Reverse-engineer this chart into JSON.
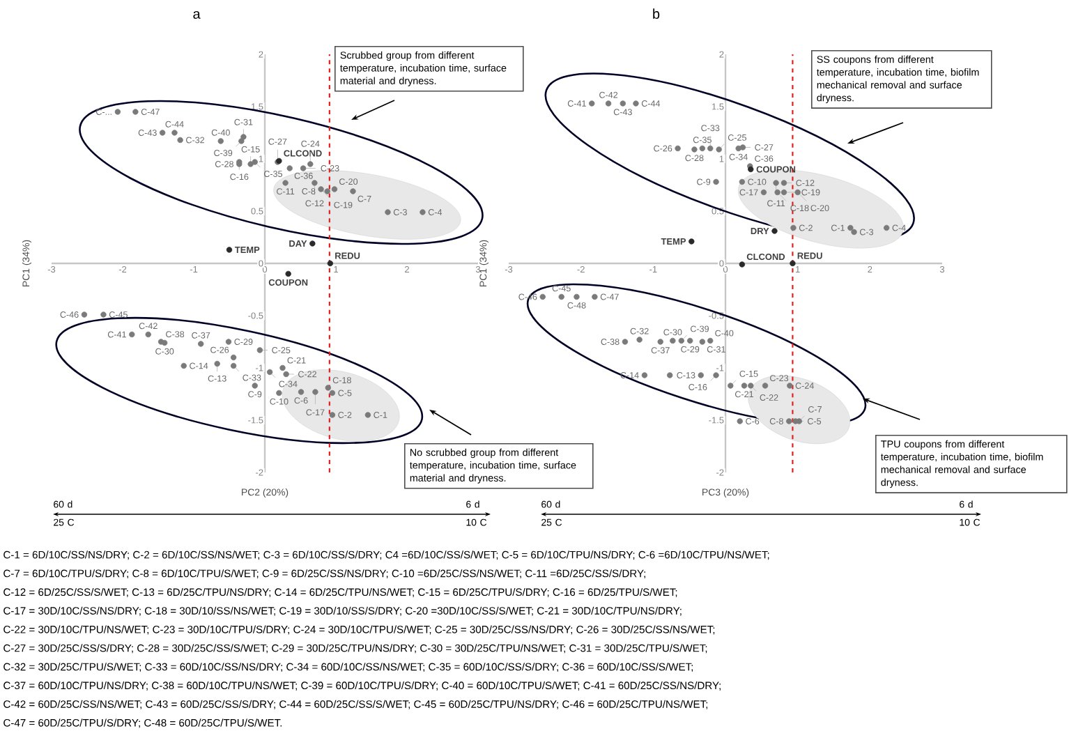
{
  "chart_data": [
    {
      "type": "scatter",
      "title": "a",
      "xlabel": "PC2 (20%)",
      "ylabel": "PC1 (34%)",
      "xlim": [
        -3,
        3
      ],
      "ylim": [
        -2,
        2
      ],
      "xticks": [
        -3,
        -2,
        -1,
        0,
        1,
        2,
        3
      ],
      "yticks": [
        -2,
        -1.5,
        -1,
        -0.5,
        0,
        0.5,
        1,
        1.5,
        2
      ],
      "marker": "circle",
      "series": [
        {
          "color": "#7a7a7a",
          "x": [
            -2.07,
            -1.82,
            -1.44,
            -1.27,
            -1.19,
            -0.62,
            -0.33,
            -0.3,
            -0.36,
            -0.14,
            -0.36,
            -0.2,
            0.18,
            0.35,
            0.54,
            0.64,
            0.29,
            0.7,
            0.79,
            0.98,
            0.88,
            1.24,
            1.73,
            2.22,
            -2.54,
            -2.27,
            -1.87,
            -1.64,
            -1.46,
            -1.41,
            -0.9,
            -0.51,
            -0.07,
            -0.44,
            -1.14,
            -0.67,
            -0.44,
            0.07,
            -0.14,
            0.2,
            0.25,
            0.3,
            0.51,
            0.71,
            0.95,
            0.89,
            0.95,
            1.45
          ],
          "values": [
            1.45,
            1.45,
            1.25,
            1.25,
            1.18,
            1.17,
            1.17,
            1.21,
            0.97,
            0.97,
            0.95,
            0.95,
            0.97,
            0.91,
            0.91,
            0.95,
            0.77,
            0.77,
            0.71,
            0.71,
            0.69,
            0.69,
            0.49,
            0.49,
            -0.49,
            -0.49,
            -0.68,
            -0.68,
            -0.75,
            -0.76,
            -0.77,
            -0.75,
            -0.83,
            -0.9,
            -0.98,
            -0.96,
            -0.98,
            -1.04,
            -1.17,
            -1.24,
            -1.0,
            -1.06,
            -1.23,
            -1.23,
            -1.24,
            -1.19,
            -1.45,
            -1.45
          ],
          "value_labels": [
            "C-...",
            "C-47",
            "C-43",
            "C-44",
            "C-32",
            "C-40",
            "C-39",
            "C-31",
            "C-16",
            "C-35",
            "C-28",
            "C-15",
            "C-27",
            "C-36",
            "C-23",
            "C-24",
            "C-11",
            "C-12",
            "C-19",
            "C-20",
            "C-8",
            "C-7",
            "C-3",
            "C-4",
            "C-46",
            "C-45",
            "C-41",
            "C-42",
            "C-38",
            "C-30",
            "C-37",
            "C-29",
            "C-25",
            "C-26",
            "C-14",
            "C-13",
            "C-33",
            "C-34",
            "C-9",
            "C-10",
            "C-21",
            "C-22",
            "C-6",
            "C-17",
            "C-5",
            "C-18",
            "C-2",
            "C-1"
          ]
        },
        {
          "color": "#2a2a2a",
          "x": [
            -0.5,
            0.67,
            0.92,
            0.2,
            0.33
          ],
          "values": [
            0.13,
            0.19,
            0.0,
            0.98,
            -0.1
          ],
          "value_labels": [
            "TEMP",
            "DAY",
            "REDU",
            "CLCOND",
            "COUPON"
          ]
        }
      ],
      "ref_lines": [
        {
          "axis": "x",
          "value": 0.91,
          "color": "#e02020",
          "line_style": "dashed"
        }
      ],
      "annotations": [
        "Scrubbed group from different temperature, incubation time, surface material and dryness.",
        "No scrubbed group from different temperature, incubation time, surface material and dryness.",
        "60 d 25 C",
        "6 d 10 C"
      ]
    },
    {
      "type": "scatter",
      "title": "b",
      "xlabel": "PC3 (20%)",
      "ylabel": "PC1 (34%)",
      "xlim": [
        -3,
        3
      ],
      "ylim": [
        -2,
        2
      ],
      "xticks": [
        -3,
        -2,
        -1,
        0,
        1,
        2,
        3
      ],
      "yticks": [
        -2,
        -1.5,
        -1,
        -0.5,
        0,
        0.5,
        1,
        1.5,
        2
      ],
      "marker": "circle",
      "series": [
        {
          "color": "#7a7a7a",
          "x": [
            -1.85,
            -1.62,
            -1.42,
            -1.24,
            -0.66,
            -0.43,
            -0.32,
            -0.21,
            -0.09,
            0.18,
            0.24,
            0.34,
            -0.13,
            0.23,
            0.7,
            0.81,
            0.53,
            0.72,
            0.81,
            1.0,
            0.94,
            1.73,
            2.23,
            1.78,
            -2.53,
            -2.27,
            -2.06,
            -1.81,
            -1.39,
            -1.19,
            -0.9,
            -0.73,
            -0.61,
            -0.49,
            -0.32,
            -0.21,
            -1.12,
            -0.77,
            -0.34,
            -0.13,
            0.07,
            0.26,
            0.35,
            0.55,
            0.89,
            0.2,
            0.88,
            0.97,
            1.02
          ],
          "values": [
            1.53,
            1.53,
            1.53,
            1.53,
            1.1,
            1.09,
            1.1,
            1.1,
            1.09,
            1.1,
            1.11,
            0.93,
            0.78,
            0.78,
            0.77,
            0.77,
            0.68,
            0.68,
            0.68,
            0.68,
            0.34,
            0.34,
            0.34,
            0.3,
            -0.32,
            -0.32,
            -0.32,
            -0.32,
            -0.75,
            -0.73,
            -0.75,
            -0.74,
            -0.74,
            -0.74,
            -0.75,
            -0.74,
            -1.07,
            -1.07,
            -1.07,
            -1.07,
            -1.17,
            -1.17,
            -1.17,
            -1.17,
            -1.17,
            -1.51,
            -1.51,
            -1.51,
            -1.51
          ],
          "value_labels": [
            "C-41",
            "C-42",
            "C-43",
            "C-44",
            "C-26",
            "C-28",
            "C-35",
            "C-33",
            "C-25",
            "C-34",
            "C-27",
            "C-36",
            "C-9",
            "C-10",
            "C-11",
            "C-12",
            "C-17",
            "C-18",
            "C-19",
            "C-20",
            "C-2",
            "C-1",
            "C-4",
            "C-3",
            "C-46",
            "C-45",
            "C-48",
            "C-47",
            "C-38",
            "C-32",
            "C-37",
            "C-30",
            "C-39",
            "C-29",
            "C-31",
            "C-40",
            "C-14",
            null,
            "C-13",
            "C-16",
            "C-15",
            "C-21",
            "C-22",
            "C-23",
            "C-24",
            "C-6",
            "C-8",
            "C-5",
            "C-7"
          ]
        },
        {
          "color": "#2a2a2a",
          "x": [
            -0.47,
            0.68,
            0.35,
            0.23,
            0.93
          ],
          "values": [
            0.21,
            0.31,
            0.9,
            -0.01,
            0.0
          ],
          "value_labels": [
            "TEMP",
            "DRY",
            "COUPON",
            "CLCOND",
            "REDU"
          ]
        }
      ],
      "ref_lines": [
        {
          "axis": "x",
          "value": 0.93,
          "color": "#e02020",
          "line_style": "dashed"
        }
      ],
      "annotations": [
        "SS coupons from different temperature, incubation time, biofilm mechanical removal and surface dryness.",
        "TPU coupons from different temperature, incubation time, biofilm mechanical removal and surface dryness.",
        "60 d 25 C",
        "6 d 10 C",
        "C-1 = 6D/10C/SS/NS/DRY; C-2 = 6D/10C/SS/NS/WET; C-3 = 6D/10C/SS/S/DRY; C4 =6D/10C/SS/S/WET; C-5 = 6D/10C/TPU/NS/DRY; C-6 =6D/10C/TPU/NS/WET;",
        "C-7 = 6D/10C/TPU/S/DRY; C-8 = 6D/10C/TPU/S/WET; C-9 = 6D/25C/SS/NS/DRY; C-10 =6D/25C/SS/NS/WET; C-11 =6D/25C/SS/S/DRY;",
        "C-12 = 6D/25C/SS/S/WET; C-13 = 6D/25C/TPU/NS/DRY; C-14 = 6D/25C/TPU/NS/WET; C-15 = 6D/25C/TPU/S/DRY; C-16 = 6D/25/TPU/S/WET;",
        "C-17 = 30D/10C/SS/NS/DRY; C-18 = 30D/10/SS/NS/WET; C-19 = 30D/10/SS/S/DRY; C-20 =30D/10C/SS/S/WET; C-21 = 30D/10C/TPU/NS/DRY;",
        "C-22 = 30D/10C/TPU/NS/WET; C-23 = 30D/10C/TPU/S/DRY; C-24 = 30D/10C/TPU/S/WET; C-25 = 30D/25C/SS/NS/DRY; C-26 = 30D/25C/SS/NS/WET;",
        "C-27 = 30D/25C/SS/S/DRY;  C-28 = 30D/25C/SS/S/WET; C-29 = 30D/25C/TPU/NS/DRY; C-30 = 30D/25C/TPU/NS/WET; C-31 = 30D/25C/TPU/S/WET;",
        "C-32 = 30D/25C/TPU/S/WET; C-33 = 60D/10C/SS/NS/DRY; C-34 = 60D/10C/SS/NS/WET; C-35 = 60D/10C/SS/S/DRY; C-36 = 60D/10C/SS/S/WET;",
        "C-37 = 60D/10C/TPU/NS/DRY; C-38 = 60D/10C/TPU/NS/WET; C-39 = 60D/10C/TPU/S/DRY; C-40 = 60D/10C/TPU/S/WET; C-41 = 60D/25C/SS/NS/DRY;",
        "C-42 = 60D/25C/SS/NS/WET; C-43 = 60D/25C/SS/S/DRY; C-44 = 60D/25C/SS/S/WET; C-45 = 60D/25C/TPU/NS/DRY; C-46 = 60D/25C/TPU/NS/WET;",
        "C-47 = 60D/25C/TPU/S/DRY; C-48 = 60D/25C/TPU/S/WET."
      ]
    }
  ]
}
